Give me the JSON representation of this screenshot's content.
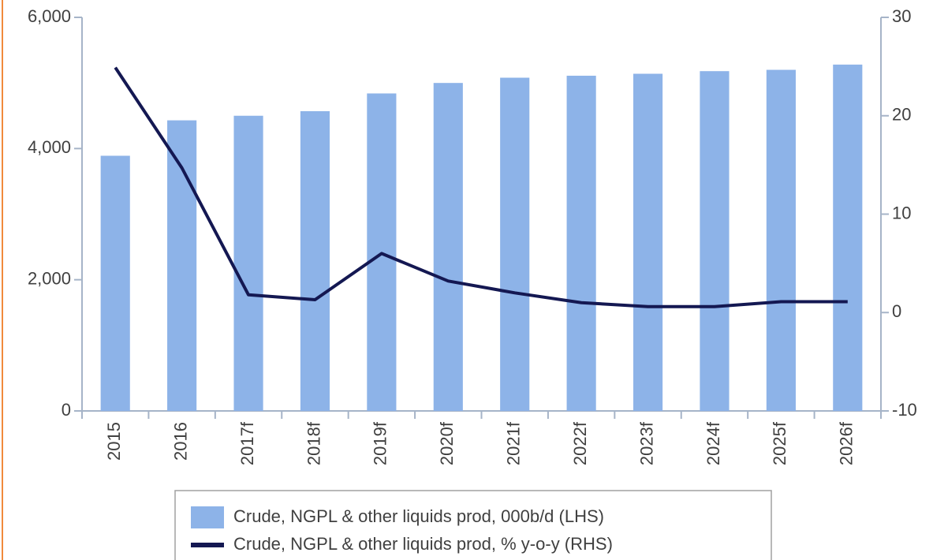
{
  "chart_data": {
    "type": "bar_line",
    "categories": [
      "2015",
      "2016",
      "2017f",
      "2018f",
      "2019f",
      "2020f",
      "2021f",
      "2022f",
      "2023f",
      "2024f",
      "2025f",
      "2026f"
    ],
    "series": [
      {
        "name": "Crude, NGPL & other liquids prod, 000b/d (LHS)",
        "type": "bar",
        "color": "#8db3e8",
        "axis": "y",
        "values": [
          3890,
          4430,
          4500,
          4570,
          4840,
          5000,
          5080,
          5110,
          5140,
          5180,
          5200,
          5280
        ]
      },
      {
        "name": "Crude, NGPL & other liquids prod, % y-o-y (RHS)",
        "type": "line",
        "color": "#141852",
        "axis": "y2",
        "values": [
          24.9,
          14.7,
          1.8,
          1.3,
          6.0,
          3.2,
          2.0,
          1.0,
          0.6,
          0.6,
          1.1,
          1.1
        ]
      }
    ],
    "ylim": [
      0,
      6000
    ],
    "yticks": [
      0,
      {
        "value": 2000,
        "label": "2,000"
      },
      {
        "value": 4000,
        "label": "4,000"
      },
      {
        "value": 6000,
        "label": "6,000"
      }
    ],
    "y2lim": [
      -10,
      30
    ],
    "y2ticks": [
      -10,
      0,
      10,
      20,
      30
    ],
    "grid": false,
    "legend": "bottom"
  }
}
